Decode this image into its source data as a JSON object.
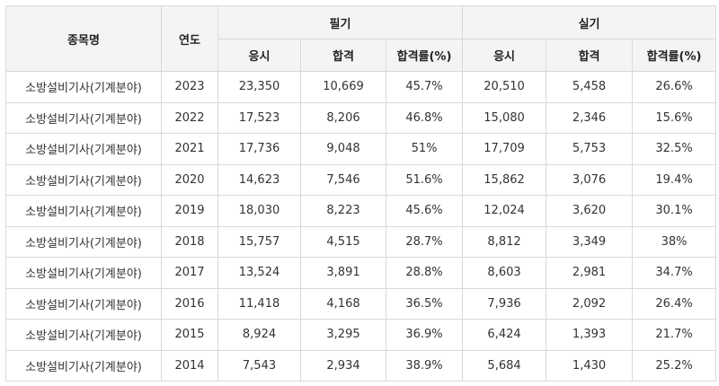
{
  "header": {
    "item": "종목명",
    "year": "연도",
    "written": "필기",
    "practical": "실기",
    "sub": {
      "applicants": "응시",
      "passed": "합격",
      "rate": "합격률(%)"
    }
  },
  "rows": [
    {
      "name": "소방설비기사(기계분야)",
      "year": "2023",
      "w_app": "23,350",
      "w_pass": "10,669",
      "w_rate": "45.7%",
      "p_app": "20,510",
      "p_pass": "5,458",
      "p_rate": "26.6%"
    },
    {
      "name": "소방설비기사(기계분야)",
      "year": "2022",
      "w_app": "17,523",
      "w_pass": "8,206",
      "w_rate": "46.8%",
      "p_app": "15,080",
      "p_pass": "2,346",
      "p_rate": "15.6%"
    },
    {
      "name": "소방설비기사(기계분야)",
      "year": "2021",
      "w_app": "17,736",
      "w_pass": "9,048",
      "w_rate": "51%",
      "p_app": "17,709",
      "p_pass": "5,753",
      "p_rate": "32.5%"
    },
    {
      "name": "소방설비기사(기계분야)",
      "year": "2020",
      "w_app": "14,623",
      "w_pass": "7,546",
      "w_rate": "51.6%",
      "p_app": "15,862",
      "p_pass": "3,076",
      "p_rate": "19.4%"
    },
    {
      "name": "소방설비기사(기계분야)",
      "year": "2019",
      "w_app": "18,030",
      "w_pass": "8,223",
      "w_rate": "45.6%",
      "p_app": "12,024",
      "p_pass": "3,620",
      "p_rate": "30.1%"
    },
    {
      "name": "소방설비기사(기계분야)",
      "year": "2018",
      "w_app": "15,757",
      "w_pass": "4,515",
      "w_rate": "28.7%",
      "p_app": "8,812",
      "p_pass": "3,349",
      "p_rate": "38%"
    },
    {
      "name": "소방설비기사(기계분야)",
      "year": "2017",
      "w_app": "13,524",
      "w_pass": "3,891",
      "w_rate": "28.8%",
      "p_app": "8,603",
      "p_pass": "2,981",
      "p_rate": "34.7%"
    },
    {
      "name": "소방설비기사(기계분야)",
      "year": "2016",
      "w_app": "11,418",
      "w_pass": "4,168",
      "w_rate": "36.5%",
      "p_app": "7,936",
      "p_pass": "2,092",
      "p_rate": "26.4%"
    },
    {
      "name": "소방설비기사(기계분야)",
      "year": "2015",
      "w_app": "8,924",
      "w_pass": "3,295",
      "w_rate": "36.9%",
      "p_app": "6,424",
      "p_pass": "1,393",
      "p_rate": "21.7%"
    },
    {
      "name": "소방설비기사(기계분야)",
      "year": "2014",
      "w_app": "7,543",
      "w_pass": "2,934",
      "w_rate": "38.9%",
      "p_app": "5,684",
      "p_pass": "1,430",
      "p_rate": "25.2%"
    }
  ]
}
